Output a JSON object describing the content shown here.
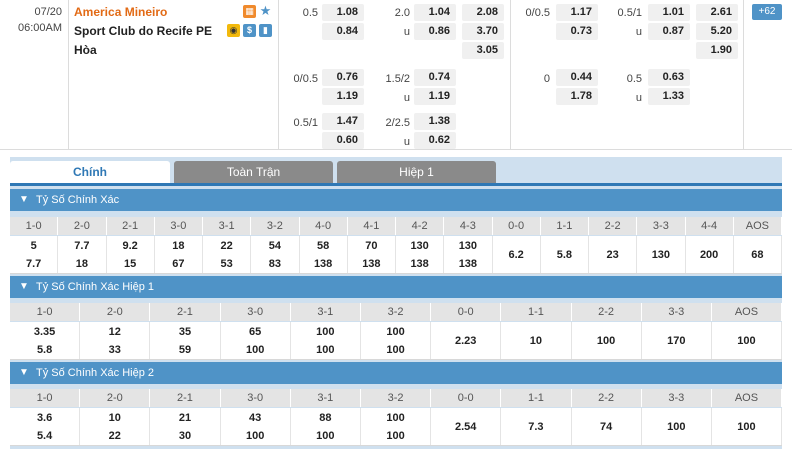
{
  "match": {
    "date": "07/20",
    "time": "06:00AM",
    "home": "America Mineiro",
    "away": "Sport Club do Recife PE",
    "draw": "Hòa",
    "more_count": "62",
    "col1": [
      {
        "h": "0.5",
        "a": "1.08",
        "b": "0.84"
      },
      {
        "h": "0/0.5",
        "a": "0.76",
        "b": "1.19"
      },
      {
        "h": "0.5/1",
        "a": "1.47",
        "b": "0.60"
      }
    ],
    "col2": [
      {
        "h": "2.0",
        "u": "u",
        "a": "1.04",
        "b": "0.86"
      },
      {
        "h": "1.5/2",
        "u": "u",
        "a": "0.74",
        "b": "1.19"
      },
      {
        "h": "2/2.5",
        "u": "u",
        "a": "1.38",
        "b": "0.62"
      }
    ],
    "col3": [
      "2.08",
      "3.70",
      "3.05"
    ],
    "col4": [
      {
        "h": "0/0.5",
        "a": "1.17",
        "b": "0.73"
      },
      {
        "h": "0",
        "a": "0.44",
        "b": "1.78"
      }
    ],
    "col5": [
      {
        "h": "0.5/1",
        "u": "u",
        "a": "1.01",
        "b": "0.87"
      },
      {
        "h": "0.5",
        "u": "u",
        "a": "0.63",
        "b": "1.33"
      }
    ],
    "col6": [
      "2.61",
      "5.20",
      "1.90"
    ]
  },
  "tabs": [
    "Chính",
    "Toàn Trận",
    "Hiệp 1"
  ],
  "sections": [
    {
      "title": "Tỷ Số Chính Xác",
      "headers": [
        "1-0",
        "2-0",
        "2-1",
        "3-0",
        "3-1",
        "3-2",
        "4-0",
        "4-1",
        "4-2",
        "4-3",
        "0-0",
        "1-1",
        "2-2",
        "3-3",
        "4-4",
        "AOS"
      ],
      "cells": [
        [
          "5",
          "7.7"
        ],
        [
          "7.7",
          "18"
        ],
        [
          "9.2",
          "15"
        ],
        [
          "18",
          "67"
        ],
        [
          "22",
          "53"
        ],
        [
          "54",
          "83"
        ],
        [
          "58",
          "138"
        ],
        [
          "70",
          "138"
        ],
        [
          "130",
          "138"
        ],
        [
          "130",
          "138"
        ],
        [
          "6.2"
        ],
        [
          "5.8"
        ],
        [
          "23"
        ],
        [
          "130"
        ],
        [
          "200"
        ],
        [
          "68"
        ]
      ]
    },
    {
      "title": "Tỷ Số Chính Xác Hiệp 1",
      "headers": [
        "1-0",
        "2-0",
        "2-1",
        "3-0",
        "3-1",
        "3-2",
        "0-0",
        "1-1",
        "2-2",
        "3-3",
        "AOS"
      ],
      "cells": [
        [
          "3.35",
          "5.8"
        ],
        [
          "12",
          "33"
        ],
        [
          "35",
          "59"
        ],
        [
          "65",
          "100"
        ],
        [
          "100",
          "100"
        ],
        [
          "100",
          "100"
        ],
        [
          "2.23"
        ],
        [
          "10"
        ],
        [
          "100"
        ],
        [
          "170"
        ],
        [
          "100"
        ]
      ]
    },
    {
      "title": "Tỷ Số Chính Xác Hiệp 2",
      "headers": [
        "1-0",
        "2-0",
        "2-1",
        "3-0",
        "3-1",
        "3-2",
        "0-0",
        "1-1",
        "2-2",
        "3-3",
        "AOS"
      ],
      "cells": [
        [
          "3.6",
          "5.4"
        ],
        [
          "10",
          "22"
        ],
        [
          "21",
          "30"
        ],
        [
          "43",
          "100"
        ],
        [
          "88",
          "100"
        ],
        [
          "100",
          "100"
        ],
        [
          "2.54"
        ],
        [
          "7.3"
        ],
        [
          "74"
        ],
        [
          "100"
        ],
        [
          "100"
        ]
      ]
    }
  ],
  "colors": {
    "home": "#e26a15",
    "section": "#4f93c7",
    "tab_active": "#2f78b5"
  }
}
